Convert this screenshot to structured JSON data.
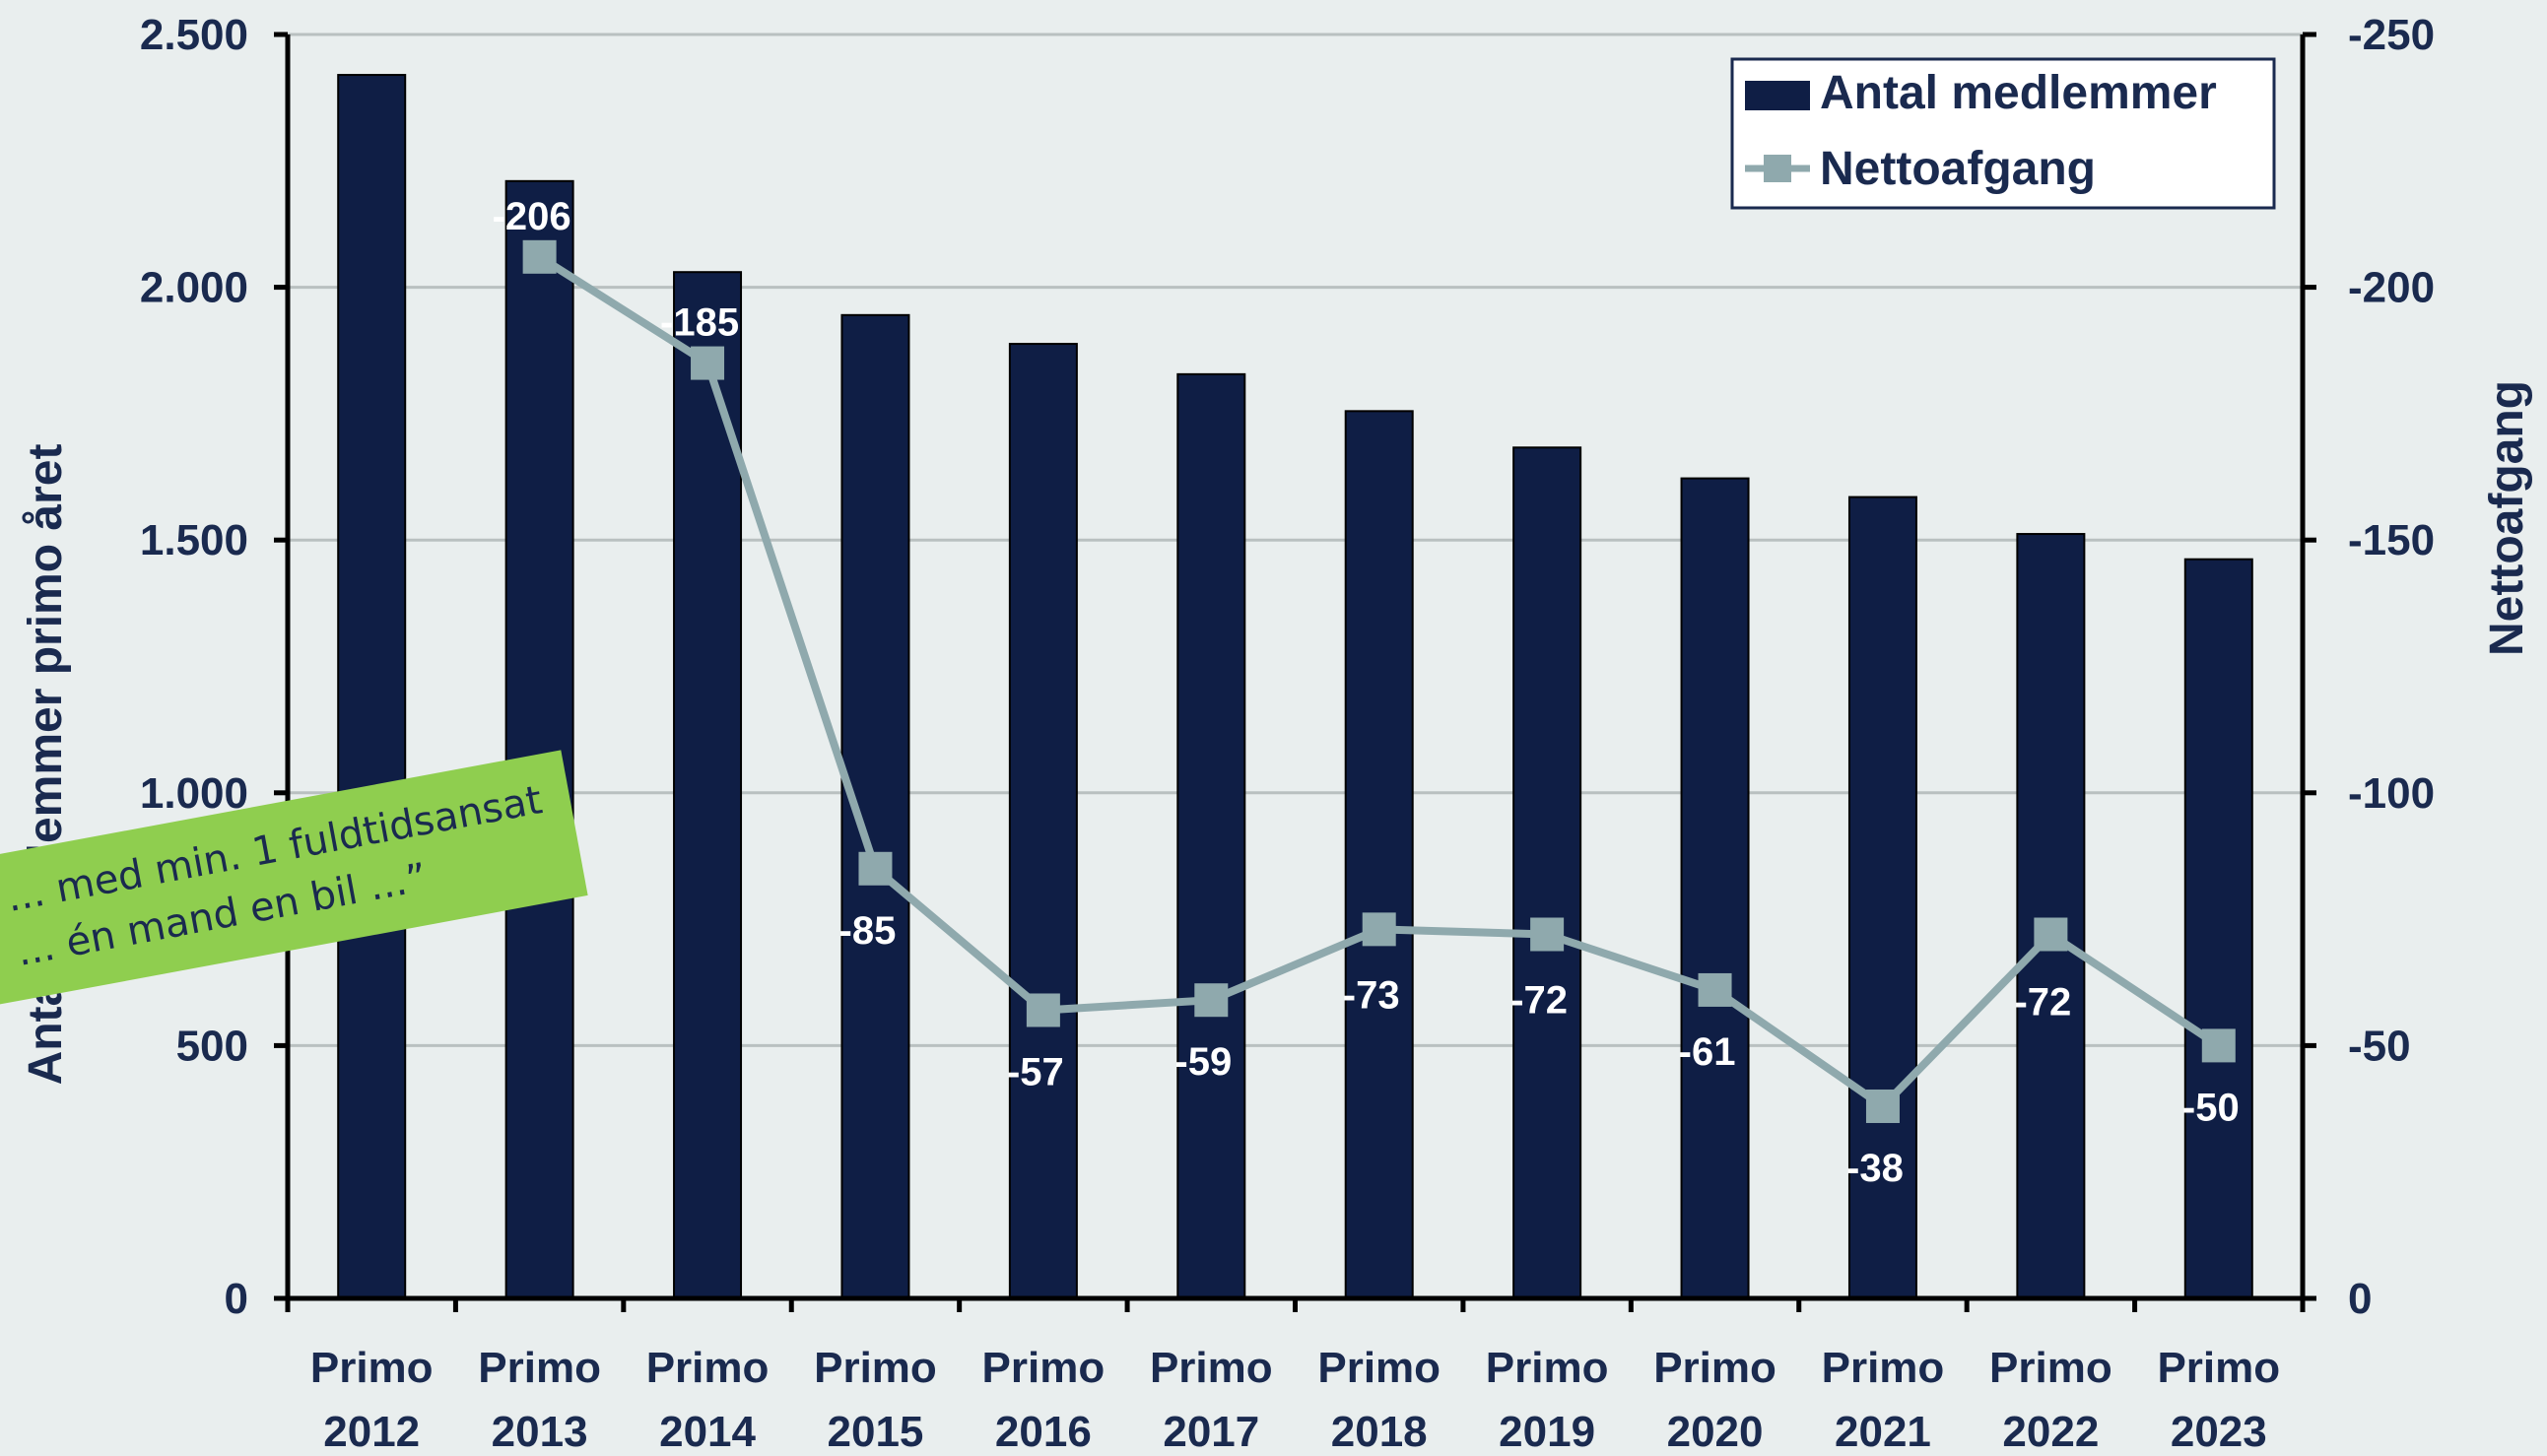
{
  "chart_data": {
    "type": "bar",
    "categories": [
      [
        "Primo",
        "2012"
      ],
      [
        "Primo",
        "2013"
      ],
      [
        "Primo",
        "2014"
      ],
      [
        "Primo",
        "2015"
      ],
      [
        "Primo",
        "2016"
      ],
      [
        "Primo",
        "2017"
      ],
      [
        "Primo",
        "2018"
      ],
      [
        "Primo",
        "2019"
      ],
      [
        "Primo",
        "2020"
      ],
      [
        "Primo",
        "2021"
      ],
      [
        "Primo",
        "2022"
      ],
      [
        "Primo",
        "2023"
      ]
    ],
    "series": [
      {
        "name": "Antal medlemmer",
        "type": "bar",
        "axis": "left",
        "color": "#0f1e45",
        "values": [
          2420,
          2210,
          2030,
          1945,
          1888,
          1828,
          1755,
          1683,
          1622,
          1585,
          1512,
          1462
        ]
      },
      {
        "name": "Nettoafgang",
        "type": "line",
        "axis": "right",
        "color": "#8fa9ad",
        "marker": "square",
        "values": [
          null,
          -206,
          -185,
          -85,
          -57,
          -59,
          -73,
          -72,
          -61,
          -38,
          -72,
          -50
        ],
        "data_labels": [
          "",
          "-206",
          "-185",
          "-85",
          "-57",
          "-59",
          "-73",
          "-72",
          "-61",
          "-38",
          "-72",
          "-50"
        ]
      }
    ],
    "y_left": {
      "label": "Antal medlemmer  primo året",
      "ylim": [
        0,
        2500
      ],
      "ticks": [
        0,
        500,
        1000,
        1500,
        2000,
        2500
      ],
      "tick_labels": [
        "0",
        "500",
        "1.000",
        "1.500",
        "2.000",
        "2.500"
      ]
    },
    "y_right": {
      "label": "Nettoafgang",
      "ylim": [
        0,
        -250
      ],
      "inverted": true,
      "ticks": [
        0,
        -50,
        -100,
        -150,
        -200,
        -250
      ],
      "tick_labels": [
        "0",
        "-50",
        "-100",
        "-150",
        "-200",
        "-250"
      ]
    },
    "grid": true,
    "legend_position": "top-right"
  },
  "overlay_banner": {
    "lines": [
      "... med min. 1 fuldtidsansat",
      "... én mand en bil ...”"
    ],
    "color": "#8fce4f"
  }
}
